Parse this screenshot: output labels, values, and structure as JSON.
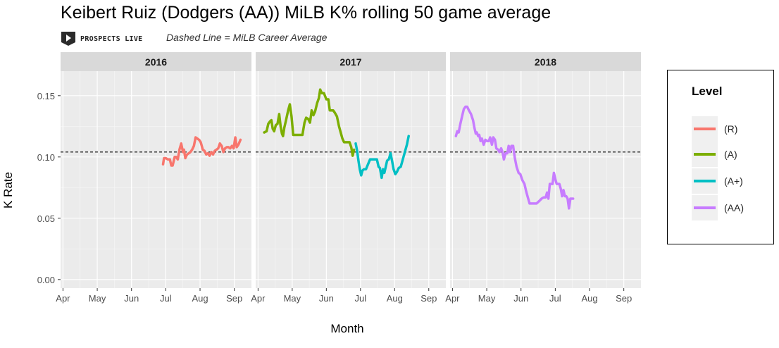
{
  "title": "Keibert Ruiz (Dodgers (AA)) MiLB K% rolling 50 game average",
  "logo_text": "PROSPECTS LIVE",
  "subtitle": "Dashed Line = MiLB Career Average",
  "chart_data": {
    "type": "line",
    "xlabel": "Month",
    "ylabel": "K Rate",
    "ylim": [
      -0.007,
      0.17
    ],
    "yticks": [
      0.0,
      0.05,
      0.1,
      0.15
    ],
    "ytick_labels": [
      "0.00",
      "0.05",
      "0.10",
      "0.15"
    ],
    "xticks": [
      4,
      5,
      6,
      7,
      8,
      9
    ],
    "xtick_labels": [
      "Apr",
      "May",
      "Jun",
      "Jul",
      "Aug",
      "Sep"
    ],
    "xlim": [
      3.93,
      9.5
    ],
    "grid": true,
    "career_average": 0.104,
    "legend_title": "Level",
    "legend_position": "right",
    "panels": [
      {
        "label": "2016",
        "series": [
          {
            "name": "(R)",
            "color": "#F8766D",
            "points": [
              [
                6.92,
                0.094
              ],
              [
                6.95,
                0.099
              ],
              [
                7.0,
                0.099
              ],
              [
                7.06,
                0.098
              ],
              [
                7.12,
                0.098
              ],
              [
                7.16,
                0.093
              ],
              [
                7.2,
                0.093
              ],
              [
                7.26,
                0.1
              ],
              [
                7.3,
                0.1
              ],
              [
                7.35,
                0.098
              ],
              [
                7.4,
                0.106
              ],
              [
                7.45,
                0.111
              ],
              [
                7.5,
                0.104
              ],
              [
                7.53,
                0.106
              ],
              [
                7.57,
                0.099
              ],
              [
                7.62,
                0.102
              ],
              [
                7.67,
                0.103
              ],
              [
                7.72,
                0.104
              ],
              [
                7.77,
                0.106
              ],
              [
                7.82,
                0.109
              ],
              [
                7.87,
                0.116
              ],
              [
                7.92,
                0.115
              ],
              [
                7.97,
                0.114
              ],
              [
                8.02,
                0.112
              ],
              [
                8.08,
                0.106
              ],
              [
                8.13,
                0.105
              ],
              [
                8.18,
                0.102
              ],
              [
                8.23,
                0.103
              ],
              [
                8.28,
                0.101
              ],
              [
                8.33,
                0.104
              ],
              [
                8.38,
                0.102
              ],
              [
                8.43,
                0.105
              ],
              [
                8.48,
                0.106
              ],
              [
                8.53,
                0.107
              ],
              [
                8.58,
                0.111
              ],
              [
                8.63,
                0.109
              ],
              [
                8.68,
                0.104
              ],
              [
                8.73,
                0.107
              ],
              [
                8.78,
                0.108
              ],
              [
                8.83,
                0.108
              ],
              [
                8.88,
                0.107
              ],
              [
                8.93,
                0.109
              ],
              [
                8.98,
                0.107
              ],
              [
                9.03,
                0.116
              ],
              [
                9.07,
                0.108
              ],
              [
                9.12,
                0.11
              ],
              [
                9.18,
                0.114
              ]
            ]
          }
        ]
      },
      {
        "label": "2017",
        "series": [
          {
            "name": "(A)",
            "color": "#7CAE00",
            "points": [
              [
                4.18,
                0.12
              ],
              [
                4.25,
                0.121
              ],
              [
                4.3,
                0.127
              ],
              [
                4.35,
                0.129
              ],
              [
                4.39,
                0.13
              ],
              [
                4.43,
                0.123
              ],
              [
                4.47,
                0.121
              ],
              [
                4.52,
                0.126
              ],
              [
                4.57,
                0.127
              ],
              [
                4.62,
                0.135
              ],
              [
                4.66,
                0.125
              ],
              [
                4.7,
                0.119
              ],
              [
                4.73,
                0.117
              ],
              [
                4.77,
                0.124
              ],
              [
                4.82,
                0.13
              ],
              [
                4.88,
                0.138
              ],
              [
                4.93,
                0.143
              ],
              [
                4.98,
                0.133
              ],
              [
                5.03,
                0.118
              ],
              [
                5.1,
                0.118
              ],
              [
                5.2,
                0.118
              ],
              [
                5.3,
                0.118
              ],
              [
                5.36,
                0.128
              ],
              [
                5.41,
                0.132
              ],
              [
                5.47,
                0.131
              ],
              [
                5.52,
                0.128
              ],
              [
                5.57,
                0.138
              ],
              [
                5.62,
                0.134
              ],
              [
                5.67,
                0.137
              ],
              [
                5.73,
                0.144
              ],
              [
                5.78,
                0.148
              ],
              [
                5.82,
                0.155
              ],
              [
                5.87,
                0.152
              ],
              [
                5.93,
                0.152
              ],
              [
                6.0,
                0.147
              ],
              [
                6.06,
                0.147
              ],
              [
                6.1,
                0.138
              ],
              [
                6.2,
                0.138
              ],
              [
                6.25,
                0.136
              ],
              [
                6.31,
                0.133
              ],
              [
                6.37,
                0.125
              ],
              [
                6.42,
                0.12
              ],
              [
                6.47,
                0.115
              ],
              [
                6.52,
                0.112
              ],
              [
                6.6,
                0.112
              ],
              [
                6.68,
                0.112
              ],
              [
                6.73,
                0.108
              ],
              [
                6.77,
                0.101
              ],
              [
                6.81,
                0.106
              ]
            ]
          },
          {
            "name": "(A+)",
            "color": "#00BFC4",
            "points": [
              [
                6.86,
                0.111
              ],
              [
                6.9,
                0.105
              ],
              [
                6.94,
                0.097
              ],
              [
                6.98,
                0.09
              ],
              [
                7.02,
                0.085
              ],
              [
                7.06,
                0.089
              ],
              [
                7.1,
                0.09
              ],
              [
                7.16,
                0.09
              ],
              [
                7.22,
                0.094
              ],
              [
                7.28,
                0.098
              ],
              [
                7.35,
                0.098
              ],
              [
                7.42,
                0.098
              ],
              [
                7.48,
                0.098
              ],
              [
                7.53,
                0.092
              ],
              [
                7.57,
                0.091
              ],
              [
                7.62,
                0.083
              ],
              [
                7.66,
                0.09
              ],
              [
                7.7,
                0.087
              ],
              [
                7.74,
                0.092
              ],
              [
                7.78,
                0.097
              ],
              [
                7.83,
                0.098
              ],
              [
                7.88,
                0.103
              ],
              [
                7.93,
                0.096
              ],
              [
                7.97,
                0.09
              ],
              [
                8.02,
                0.086
              ],
              [
                8.07,
                0.088
              ],
              [
                8.12,
                0.091
              ],
              [
                8.18,
                0.092
              ],
              [
                8.24,
                0.098
              ],
              [
                8.3,
                0.104
              ],
              [
                8.36,
                0.11
              ],
              [
                8.41,
                0.117
              ]
            ]
          }
        ]
      },
      {
        "label": "2018",
        "series": [
          {
            "name": "(AA)",
            "color": "#C77CFF",
            "points": [
              [
                4.1,
                0.117
              ],
              [
                4.14,
                0.121
              ],
              [
                4.18,
                0.12
              ],
              [
                4.23,
                0.127
              ],
              [
                4.28,
                0.133
              ],
              [
                4.33,
                0.139
              ],
              [
                4.38,
                0.141
              ],
              [
                4.43,
                0.141
              ],
              [
                4.48,
                0.138
              ],
              [
                4.54,
                0.135
              ],
              [
                4.6,
                0.13
              ],
              [
                4.64,
                0.124
              ],
              [
                4.68,
                0.119
              ],
              [
                4.71,
                0.12
              ],
              [
                4.75,
                0.117
              ],
              [
                4.78,
                0.118
              ],
              [
                4.82,
                0.113
              ],
              [
                4.86,
                0.115
              ],
              [
                4.91,
                0.11
              ],
              [
                4.96,
                0.114
              ],
              [
                5.01,
                0.113
              ],
              [
                5.06,
                0.113
              ],
              [
                5.1,
                0.116
              ],
              [
                5.15,
                0.11
              ],
              [
                5.19,
                0.116
              ],
              [
                5.24,
                0.114
              ],
              [
                5.28,
                0.107
              ],
              [
                5.33,
                0.106
              ],
              [
                5.37,
                0.104
              ],
              [
                5.42,
                0.107
              ],
              [
                5.46,
                0.104
              ],
              [
                5.5,
                0.098
              ],
              [
                5.55,
                0.103
              ],
              [
                5.6,
                0.103
              ],
              [
                5.64,
                0.109
              ],
              [
                5.68,
                0.104
              ],
              [
                5.72,
                0.109
              ],
              [
                5.77,
                0.109
              ],
              [
                5.82,
                0.099
              ],
              [
                5.87,
                0.092
              ],
              [
                5.93,
                0.087
              ],
              [
                5.98,
                0.086
              ],
              [
                6.04,
                0.081
              ],
              [
                6.1,
                0.078
              ],
              [
                6.15,
                0.072
              ],
              [
                6.2,
                0.067
              ],
              [
                6.25,
                0.062
              ],
              [
                6.35,
                0.062
              ],
              [
                6.45,
                0.062
              ],
              [
                6.53,
                0.064
              ],
              [
                6.6,
                0.066
              ],
              [
                6.66,
                0.067
              ],
              [
                6.72,
                0.067
              ],
              [
                6.76,
                0.071
              ],
              [
                6.8,
                0.066
              ],
              [
                6.84,
                0.078
              ],
              [
                6.88,
                0.078
              ],
              [
                6.92,
                0.078
              ],
              [
                6.96,
                0.087
              ],
              [
                7.0,
                0.082
              ],
              [
                7.04,
                0.078
              ],
              [
                7.08,
                0.078
              ],
              [
                7.12,
                0.078
              ],
              [
                7.16,
                0.074
              ],
              [
                7.2,
                0.068
              ],
              [
                7.24,
                0.073
              ],
              [
                7.28,
                0.068
              ],
              [
                7.32,
                0.068
              ],
              [
                7.36,
                0.066
              ],
              [
                7.4,
                0.058
              ],
              [
                7.44,
                0.066
              ],
              [
                7.48,
                0.066
              ],
              [
                7.52,
                0.066
              ]
            ]
          }
        ]
      }
    ],
    "legend": [
      {
        "name": "(R)",
        "color": "#F8766D"
      },
      {
        "name": "(A)",
        "color": "#7CAE00"
      },
      {
        "name": "(A+)",
        "color": "#00BFC4"
      },
      {
        "name": "(AA)",
        "color": "#C77CFF"
      }
    ]
  }
}
